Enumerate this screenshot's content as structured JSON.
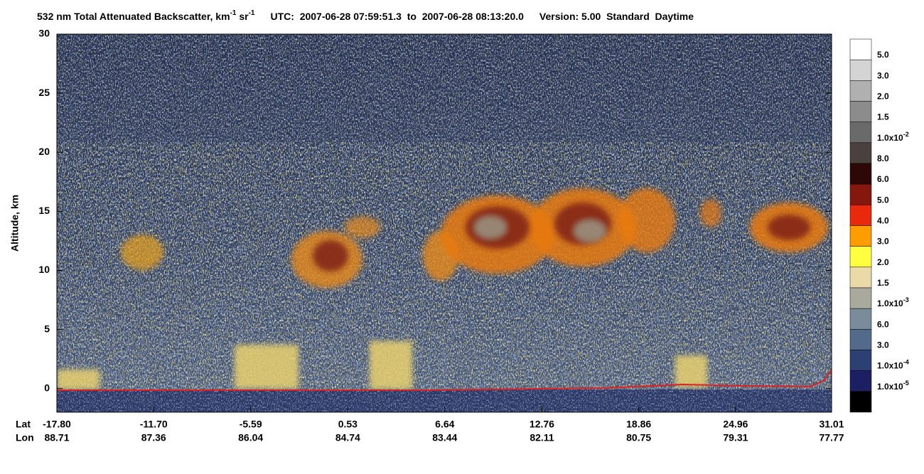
{
  "chart_data": {
    "type": "heatmap",
    "title": [
      "532 nm Total Attenuated Backscatter, km",
      "-1",
      " sr",
      "-1"
    ],
    "subtitle": "UTC:  2007-06-28 07:59:51.3  to  2007-06-28 08:13:20.0",
    "version": "Version: 5.00  Standard  Daytime",
    "ylabel": "Altitude, km",
    "ylim": [
      -2,
      30
    ],
    "yticks": [
      0,
      5,
      10,
      15,
      20,
      25,
      30
    ],
    "xrow_names": [
      "Lat",
      "Lon"
    ],
    "xlim": [
      -17.8,
      31.01
    ],
    "xticks": [
      {
        "value": -17.8,
        "label": "-17.80"
      },
      {
        "value": -11.7,
        "label": "-11.70"
      },
      {
        "value": -5.59,
        "label": "-5.59"
      },
      {
        "value": 0.53,
        "label": "0.53"
      },
      {
        "value": 6.64,
        "label": "6.64"
      },
      {
        "value": 12.76,
        "label": "12.76"
      },
      {
        "value": 18.86,
        "label": "18.86"
      },
      {
        "value": 24.96,
        "label": "24.96"
      },
      {
        "value": 31.01,
        "label": "31.01"
      }
    ],
    "lon_labels": [
      "88.71",
      "87.36",
      "86.04",
      "84.74",
      "83.44",
      "82.11",
      "80.75",
      "79.31",
      "77.77"
    ],
    "colorbar": {
      "colors": [
        "#ffffff",
        "#d4d4d4",
        "#b0b0b0",
        "#8c8c8c",
        "#6a6a6a",
        "#4a403d",
        "#2e0806",
        "#86170f",
        "#e8290c",
        "#ff9c00",
        "#ffff40",
        "#eadaa8",
        "#a9a99d",
        "#7a8b9b",
        "#546a8b",
        "#2d4073",
        "#1c1f62",
        "#000000"
      ],
      "labels": [
        {
          "text": "5.0"
        },
        {
          "text": "3.0"
        },
        {
          "text": "2.0"
        },
        {
          "text": "1.5"
        },
        {
          "text": "1.0x10",
          "sup": "-2"
        },
        {
          "text": "8.0"
        },
        {
          "text": "6.0"
        },
        {
          "text": "5.0"
        },
        {
          "text": "4.0"
        },
        {
          "text": "3.0"
        },
        {
          "text": "2.0"
        },
        {
          "text": "1.5"
        },
        {
          "text": "1.0x10",
          "sup": "-3"
        },
        {
          "text": "6.0"
        },
        {
          "text": "3.0"
        },
        {
          "text": "1.0x10",
          "sup": "-4"
        },
        {
          "text": "1.0x10",
          "sup": "-5"
        }
      ]
    }
  }
}
